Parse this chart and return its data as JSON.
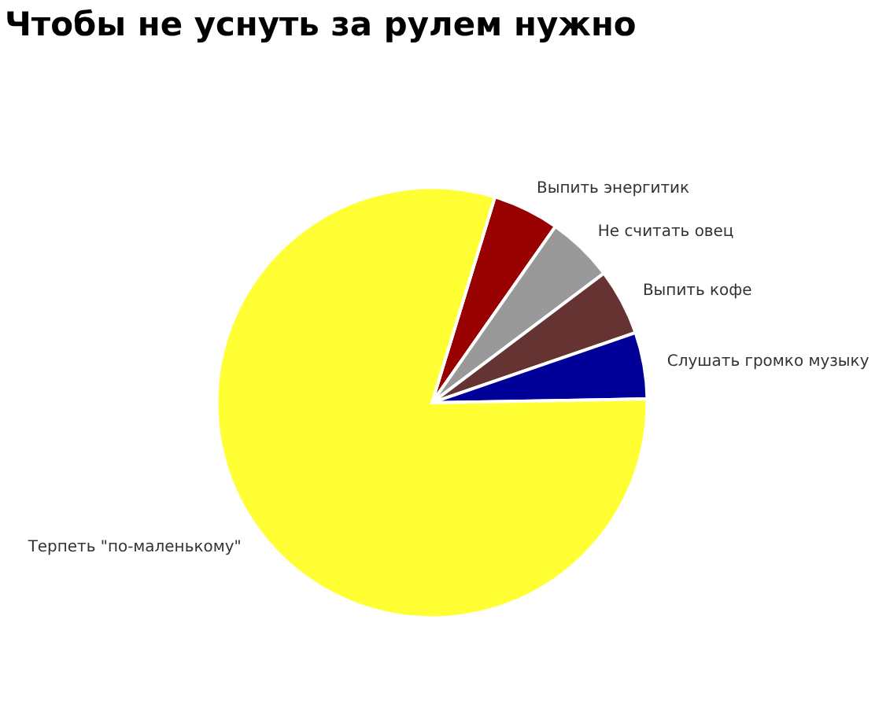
{
  "chart_data": {
    "type": "pie",
    "title": "Чтобы не уснуть за рулем нужно",
    "categories": [
      "Выпить энергитик",
      "Не считать овец",
      "Выпить кофе",
      "Слушать громко музыку",
      "Терпеть \"по-маленькому\""
    ],
    "values": [
      5,
      5,
      5,
      5,
      80
    ],
    "colors": [
      "#990000",
      "#999999",
      "#663333",
      "#000099",
      "#ffff33"
    ],
    "legend": false
  }
}
